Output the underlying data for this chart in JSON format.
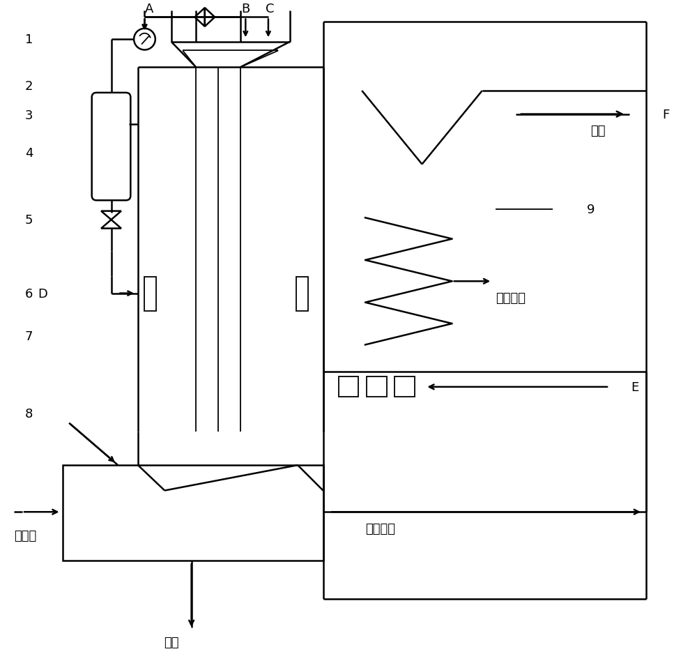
{
  "bg_color": "#ffffff",
  "lc": "#000000",
  "lw": 1.8,
  "lw_thin": 1.3,
  "figsize": [
    10.0,
    9.62
  ],
  "dpi": 100,
  "xlim": [
    0,
    10
  ],
  "ylim": [
    0,
    10
  ]
}
